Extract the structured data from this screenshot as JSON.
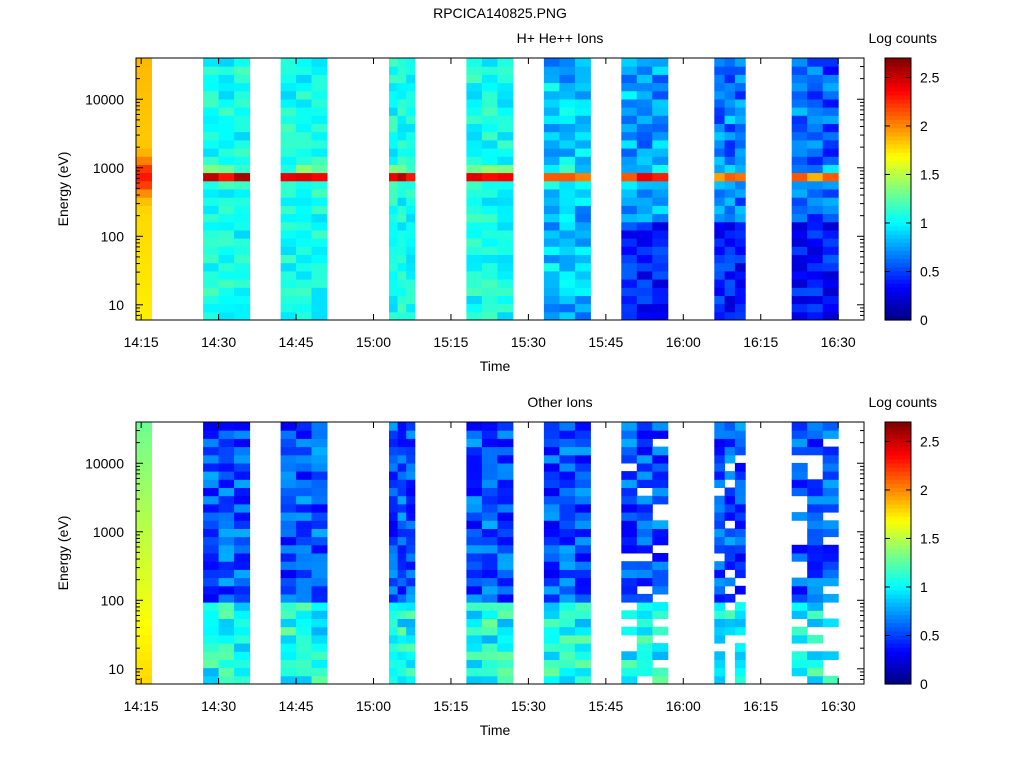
{
  "figure_title": "RPCICA140825.PNG",
  "colormap": "jet",
  "chart_data": [
    {
      "type": "heatmap",
      "title": "H+ He++ Ions",
      "colorbar_label": "Log counts",
      "colorbar_range": [
        0,
        2.7
      ],
      "colorbar_ticks": [
        "0",
        "0.5",
        "1",
        "1.5",
        "2",
        "2.5"
      ],
      "xlabel": "Time",
      "ylabel": "Energy (eV)",
      "x_ticks": [
        "14:15",
        "14:30",
        "14:45",
        "15:00",
        "15:15",
        "15:30",
        "15:45",
        "16:00",
        "16:15",
        "16:30"
      ],
      "xlim": [
        "14:14",
        "16:35"
      ],
      "y_scale": "log",
      "ylim": [
        6,
        40000
      ],
      "y_ticks": [
        "10",
        "100",
        "1000",
        "10000"
      ],
      "data_blocks_start": [
        "14:14",
        "14:27",
        "14:42",
        "15:03",
        "15:18",
        "15:33",
        "15:48",
        "16:06",
        "16:21"
      ],
      "data_blocks_end": [
        "14:17",
        "14:36",
        "14:51",
        "15:08",
        "15:27",
        "15:42",
        "15:57",
        "16:12",
        "16:30"
      ],
      "energy_peak_eV": 750,
      "energy_peak_level": 2.4
    },
    {
      "type": "heatmap",
      "title": "Other Ions",
      "colorbar_label": "Log counts",
      "colorbar_range": [
        0,
        2.7
      ],
      "colorbar_ticks": [
        "0",
        "0.5",
        "1",
        "1.5",
        "2",
        "2.5"
      ],
      "xlabel": "Time",
      "ylabel": "Energy (eV)",
      "x_ticks": [
        "14:15",
        "14:30",
        "14:45",
        "15:00",
        "15:15",
        "15:30",
        "15:45",
        "16:00",
        "16:15",
        "16:30"
      ],
      "xlim": [
        "14:14",
        "16:35"
      ],
      "y_scale": "log",
      "ylim": [
        6,
        40000
      ],
      "y_ticks": [
        "10",
        "100",
        "1000",
        "10000"
      ],
      "data_blocks_start": [
        "14:14",
        "14:27",
        "14:42",
        "15:03",
        "15:18",
        "15:33",
        "15:48",
        "16:06",
        "16:21"
      ],
      "data_blocks_end": [
        "14:17",
        "14:36",
        "14:51",
        "15:08",
        "15:27",
        "15:42",
        "15:57",
        "16:12",
        "16:30"
      ],
      "low_energy_peak_eV": 30,
      "low_energy_peak_level": 1.5
    }
  ]
}
